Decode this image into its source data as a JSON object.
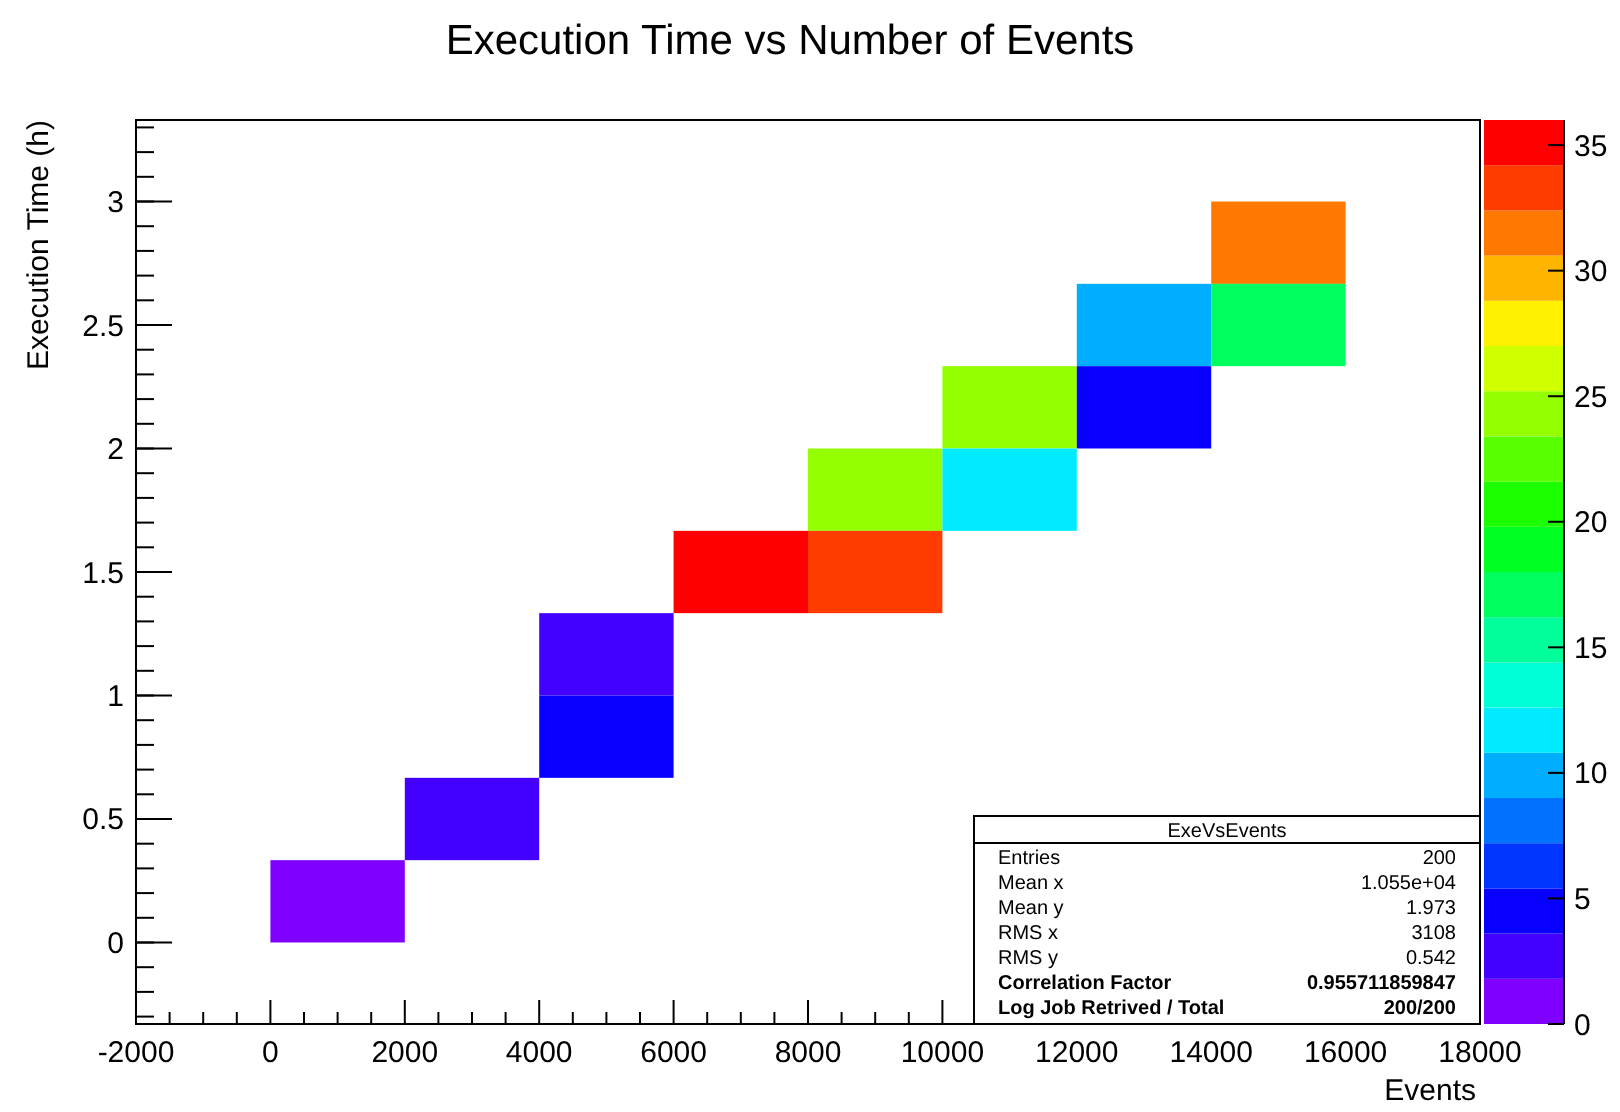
{
  "chart_data": {
    "type": "heatmap",
    "title": "Execution Time vs Number of Events",
    "xlabel": "Events",
    "ylabel": "Execution Time (h)",
    "x": [
      1000,
      3000,
      5000,
      7000,
      9000,
      11000,
      13000,
      15000
    ],
    "y": [
      2.8333,
      2.5,
      2.1667,
      1.8333,
      1.5,
      1.1667,
      0.8333,
      0.5,
      0.1667
    ],
    "cells": [
      [
        null,
        null,
        null,
        null,
        null,
        null,
        null,
        31
      ],
      [
        null,
        null,
        null,
        null,
        null,
        null,
        9,
        17
      ],
      [
        null,
        null,
        null,
        null,
        null,
        24,
        4,
        null
      ],
      [
        null,
        null,
        null,
        null,
        25,
        11,
        null,
        null
      ],
      [
        null,
        null,
        null,
        36,
        34,
        null,
        null,
        null
      ],
      [
        null,
        null,
        2,
        null,
        null,
        null,
        null,
        null
      ],
      [
        null,
        null,
        4,
        null,
        null,
        null,
        null,
        null
      ],
      [
        null,
        2,
        null,
        null,
        null,
        null,
        null,
        null
      ],
      [
        1,
        null,
        null,
        null,
        null,
        null,
        null,
        null
      ]
    ],
    "xlim": [
      -2000,
      18000
    ],
    "xticks": [
      -2000,
      0,
      2000,
      4000,
      6000,
      8000,
      10000,
      12000,
      14000,
      16000,
      18000
    ],
    "ylim": [
      -0.33,
      3.33
    ],
    "yticks": [
      0,
      0.5,
      1,
      1.5,
      2,
      2.5,
      3
    ],
    "clim": [
      0,
      36
    ],
    "cticks": [
      0,
      5,
      10,
      15,
      20,
      25,
      30,
      35
    ],
    "annotations": [
      "ExeVsEvents",
      "Entries",
      "200",
      "Mean x",
      "1.055e+04",
      "Mean y",
      "1.973",
      "RMS x",
      "3108",
      "RMS y",
      "0.542",
      "Correlation Factor",
      "0.955711859847",
      "Log Job Retrived / Total",
      "200/200"
    ]
  }
}
